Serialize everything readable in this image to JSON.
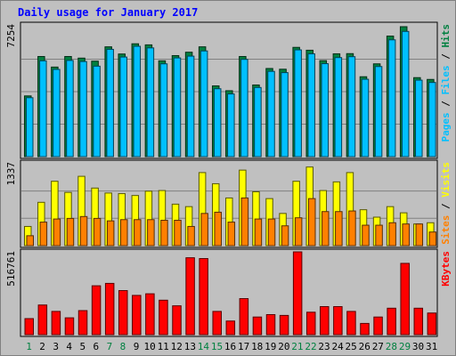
{
  "chart_data": {
    "type": "bar",
    "title": "Daily usage for January 2017",
    "categories": [
      "1",
      "2",
      "3",
      "4",
      "5",
      "6",
      "7",
      "8",
      "9",
      "10",
      "11",
      "12",
      "13",
      "14",
      "15",
      "16",
      "17",
      "18",
      "19",
      "20",
      "21",
      "22",
      "23",
      "24",
      "25",
      "26",
      "27",
      "28",
      "29",
      "30",
      "31"
    ],
    "weekend_days": [
      1,
      7,
      8,
      14,
      15,
      21,
      22,
      28,
      29
    ],
    "panels": [
      {
        "label_parts": [
          "Pages",
          "Files",
          "Hits"
        ],
        "ymax_label": "7254",
        "ymax": 7254,
        "series": [
          {
            "name": "Hits",
            "color": "#008040",
            "values": [
              3390,
              5590,
              5000,
              5590,
              5500,
              5330,
              6130,
              5730,
              6300,
              6240,
              5350,
              5640,
              5830,
              6130,
              3950,
              3680,
              5590,
              4000,
              4920,
              4880,
              6100,
              5940,
              5360,
              5740,
              5750,
              4460,
              5180,
              6730,
              7254,
              4410,
              4310
            ]
          },
          {
            "name": "Files",
            "color": "#00c0ff",
            "values": [
              3290,
              5350,
              4870,
              5370,
              5310,
              5050,
              5990,
              5560,
              6160,
              6070,
              5180,
              5510,
              5610,
              5900,
              3790,
              3500,
              5430,
              3860,
              4760,
              4690,
              5960,
              5740,
              5190,
              5530,
              5580,
              4320,
              5030,
              6520,
              6990,
              4270,
              4140
            ]
          },
          {
            "name": "Pages",
            "color": "#00c0ff",
            "values": []
          }
        ]
      },
      {
        "label_parts": [
          "Sites",
          "Visits"
        ],
        "ymax_label": "1337",
        "ymax": 1337,
        "series": [
          {
            "name": "Visits",
            "color": "#ffff00",
            "values": [
              310,
              700,
              1040,
              860,
              1120,
              930,
              850,
              840,
              810,
              880,
              890,
              670,
              630,
              1180,
              1000,
              770,
              1220,
              870,
              760,
              520,
              1040,
              1270,
              890,
              1030,
              1180,
              580,
              460,
              630,
              530,
              350,
              370
            ]
          },
          {
            "name": "Sites",
            "color": "#ff8000",
            "values": [
              160,
              380,
              430,
              440,
              470,
              440,
              400,
              420,
              420,
              420,
              410,
              410,
              310,
              520,
              540,
              380,
              770,
              430,
              430,
              320,
              450,
              760,
              550,
              550,
              560,
              330,
              330,
              370,
              350,
              350,
              220
            ]
          }
        ]
      },
      {
        "label_parts": [
          "KBytes"
        ],
        "ymax_label": "516761",
        "ymax": 516761,
        "series": [
          {
            "name": "KBytes",
            "color": "#ff0000",
            "values": [
              100000,
              185000,
              145000,
              105000,
              150000,
              305000,
              320000,
              275000,
              245000,
              255000,
              215000,
              180000,
              480000,
              475000,
              145000,
              85000,
              225000,
              110000,
              125000,
              120000,
              516761,
              140000,
              175000,
              175000,
              145000,
              70000,
              110000,
              165000,
              445000,
              165000,
              135000
            ]
          }
        ]
      }
    ]
  }
}
